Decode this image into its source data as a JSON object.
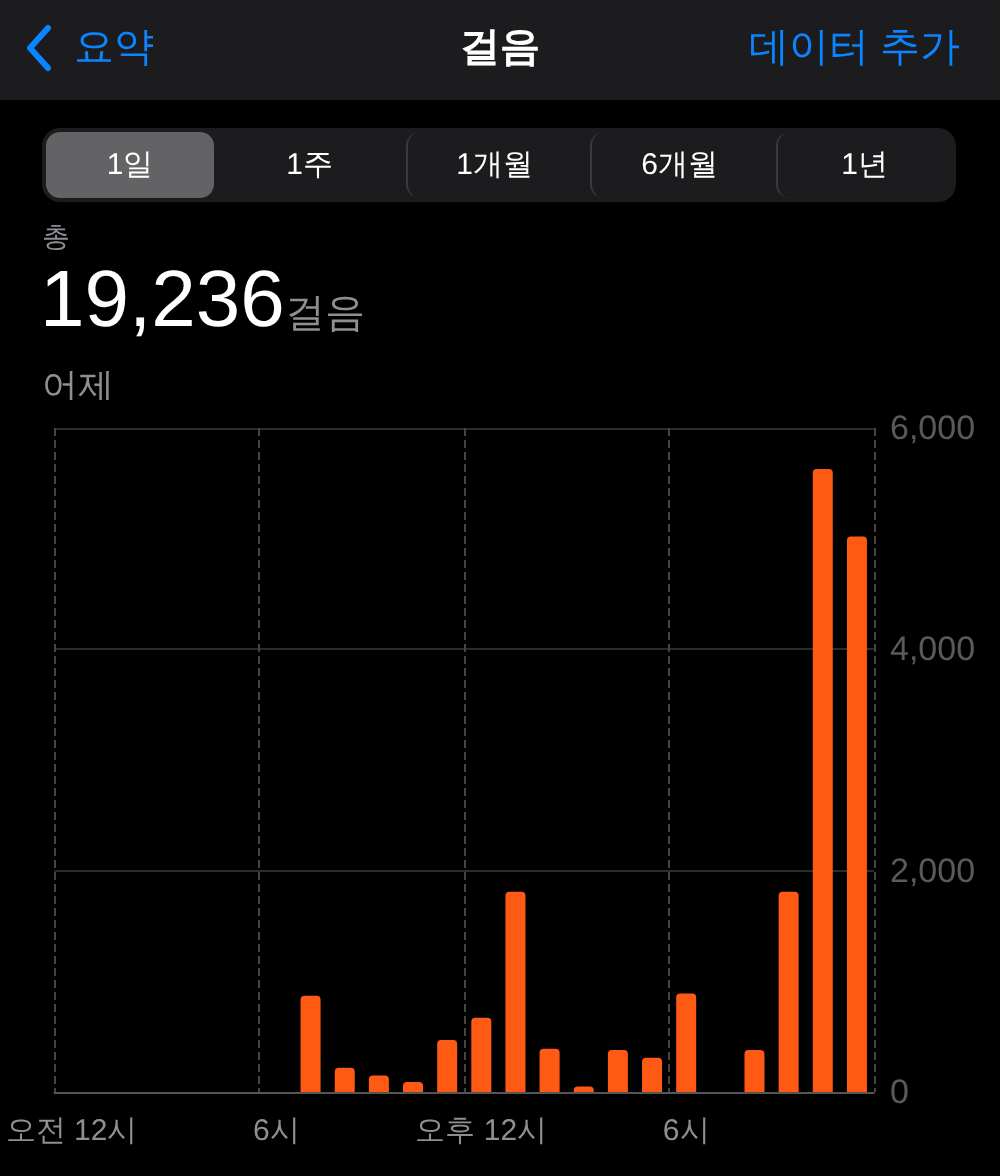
{
  "chart_data": {
    "type": "bar",
    "title": "걸음",
    "annotations": [
      "요약",
      "데이터 추가",
      "1일",
      "1주",
      "1개월",
      "6개월",
      "1년",
      "총",
      "19,236걸음",
      "어제"
    ],
    "categories": [
      "오전 12시",
      null,
      null,
      null,
      null,
      null,
      "6시",
      null,
      null,
      null,
      null,
      null,
      "오후 12시",
      null,
      null,
      null,
      null,
      null,
      "6시",
      null,
      null,
      null,
      null,
      null
    ],
    "values": [
      0,
      0,
      0,
      0,
      0,
      0,
      0,
      870,
      220,
      150,
      90,
      470,
      670,
      1810,
      390,
      50,
      380,
      310,
      890,
      0,
      380,
      1810,
      5630,
      5020
    ],
    "color": "#ff5a14",
    "ylim": [
      0,
      6000
    ],
    "yticks": [
      0,
      {
        "value": 2000,
        "label": "2,000"
      },
      {
        "value": 4000,
        "label": "4,000"
      },
      {
        "value": 6000,
        "label": "6,000"
      }
    ],
    "grid": true
  }
}
